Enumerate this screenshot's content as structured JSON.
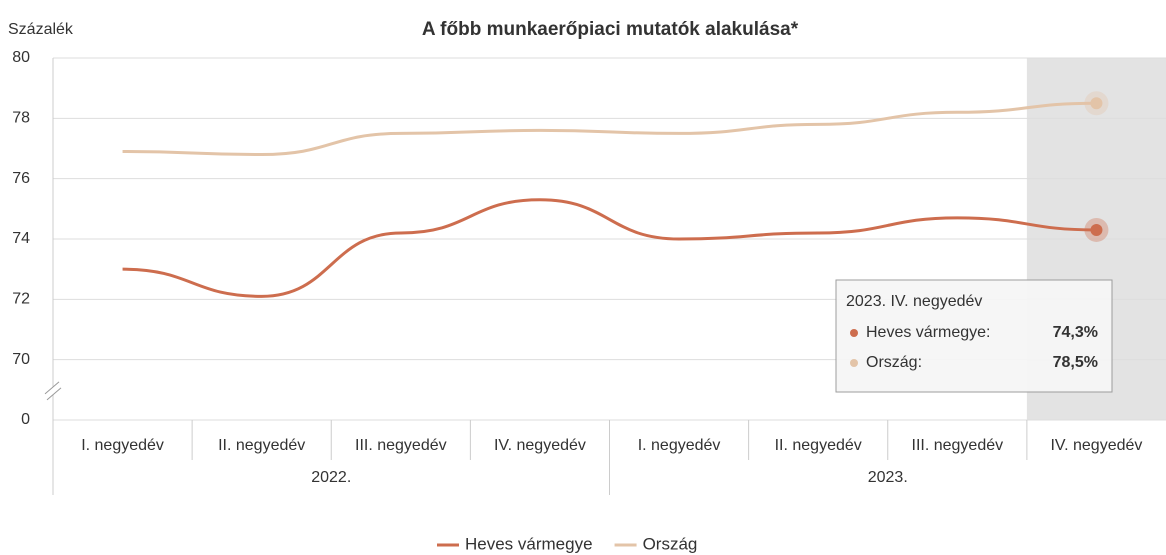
{
  "chart_data": {
    "type": "line",
    "title": "A főbb munkaerőpiaci mutatók alakulása*",
    "y_axis_label": "Százalék",
    "categories": [
      "I. negyedév",
      "II. negyedév",
      "III. negyedév",
      "IV. negyedév",
      "I. negyedév",
      "II. negyedév",
      "III. negyedév",
      "IV. negyedév"
    ],
    "groups": [
      {
        "label": "2022.",
        "span": 4
      },
      {
        "label": "2023.",
        "span": 4
      }
    ],
    "series": [
      {
        "name": "Heves vármegye",
        "color": "#cd6d4e",
        "values": [
          73.0,
          72.1,
          74.2,
          75.3,
          74.0,
          74.2,
          74.7,
          74.3
        ]
      },
      {
        "name": "Ország",
        "color": "#e3c4a8",
        "values": [
          76.9,
          76.8,
          77.5,
          77.6,
          77.5,
          77.8,
          78.2,
          78.5
        ]
      }
    ],
    "ylim": [
      0,
      80
    ],
    "yticks": [
      0,
      70,
      72,
      74,
      76,
      78,
      80
    ],
    "axis_break": [
      0,
      68
    ],
    "grid": true,
    "highlight_index": 7,
    "tooltip": {
      "title": "2023. IV. negyedév",
      "labels": [
        "Heves vármegye:",
        "Ország:"
      ],
      "values": [
        "74,3%",
        "78,5%"
      ]
    },
    "legend": "bottom"
  }
}
